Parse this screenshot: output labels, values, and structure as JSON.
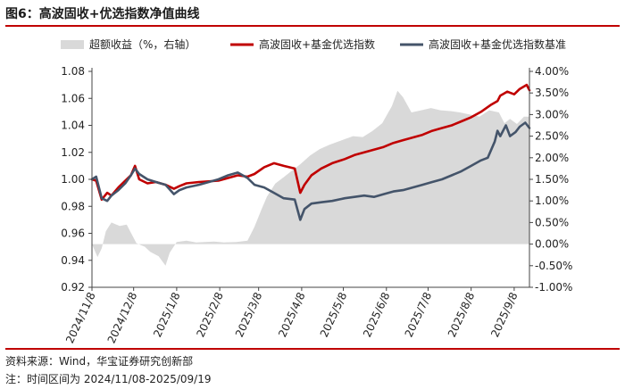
{
  "title": "图6：高波固收+优选指数净值曲线",
  "source": "资料来源：Wind，华宝证券研究创新部",
  "note": "注：时间区间为 2024/11/08-2025/09/19",
  "colors": {
    "area": "#d9d9d9",
    "index": "#c00000",
    "benchmark": "#44546a",
    "rule": "#c00000"
  },
  "chart_data": {
    "type": "line",
    "legend_position": "top",
    "series": [
      {
        "name": "超额收益（%，右轴）",
        "kind": "area",
        "axis": "right",
        "color": "#d9d9d9",
        "points": [
          [
            "2024/11/08",
            0.0
          ],
          [
            "2024/11/12",
            -0.3
          ],
          [
            "2024/11/15",
            -0.1
          ],
          [
            "2024/11/18",
            0.3
          ],
          [
            "2024/11/22",
            0.5
          ],
          [
            "2024/11/28",
            0.42
          ],
          [
            "2024/12/03",
            0.45
          ],
          [
            "2024/12/10",
            0.02
          ],
          [
            "2024/12/16",
            -0.06
          ],
          [
            "2024/12/20",
            -0.18
          ],
          [
            "2024/12/26",
            -0.28
          ],
          [
            "2024/12/31",
            -0.5
          ],
          [
            "2025/01/03",
            -0.2
          ],
          [
            "2025/01/08",
            0.05
          ],
          [
            "2025/01/15",
            0.08
          ],
          [
            "2025/01/22",
            0.04
          ],
          [
            "2025/02/04",
            0.06
          ],
          [
            "2025/02/11",
            0.04
          ],
          [
            "2025/02/20",
            0.05
          ],
          [
            "2025/02/28",
            0.08
          ],
          [
            "2025/03/05",
            0.4
          ],
          [
            "2025/03/10",
            0.8
          ],
          [
            "2025/03/14",
            1.1
          ],
          [
            "2025/03/20",
            1.4
          ],
          [
            "2025/03/26",
            1.55
          ],
          [
            "2025/04/01",
            1.7
          ],
          [
            "2025/04/07",
            1.85
          ],
          [
            "2025/04/14",
            2.05
          ],
          [
            "2025/04/21",
            2.2
          ],
          [
            "2025/04/28",
            2.3
          ],
          [
            "2025/05/08",
            2.42
          ],
          [
            "2025/05/15",
            2.5
          ],
          [
            "2025/05/22",
            2.48
          ],
          [
            "2025/05/29",
            2.62
          ],
          [
            "2025/06/05",
            2.8
          ],
          [
            "2025/06/12",
            3.2
          ],
          [
            "2025/06/16",
            3.55
          ],
          [
            "2025/06/20",
            3.4
          ],
          [
            "2025/06/26",
            3.05
          ],
          [
            "2025/07/03",
            3.1
          ],
          [
            "2025/07/10",
            3.15
          ],
          [
            "2025/07/17",
            3.1
          ],
          [
            "2025/07/24",
            3.08
          ],
          [
            "2025/07/31",
            3.05
          ],
          [
            "2025/08/07",
            3.0
          ],
          [
            "2025/08/14",
            2.95
          ],
          [
            "2025/08/21",
            3.1
          ],
          [
            "2025/08/28",
            3.05
          ],
          [
            "2025/09/01",
            2.8
          ],
          [
            "2025/09/05",
            2.9
          ],
          [
            "2025/09/10",
            2.78
          ],
          [
            "2025/09/15",
            2.95
          ],
          [
            "2025/09/19",
            2.95
          ]
        ]
      },
      {
        "name": "高波固收+基金优选指数",
        "kind": "line",
        "axis": "left",
        "color": "#c00000",
        "points": [
          [
            "2024/11/08",
            1.0
          ],
          [
            "2024/11/11",
            0.999
          ],
          [
            "2024/11/13",
            0.992
          ],
          [
            "2024/11/15",
            0.985
          ],
          [
            "2024/11/19",
            0.99
          ],
          [
            "2024/11/22",
            0.988
          ],
          [
            "2024/11/27",
            0.994
          ],
          [
            "2024/12/02",
            0.999
          ],
          [
            "2024/12/06",
            1.003
          ],
          [
            "2024/12/09",
            1.01
          ],
          [
            "2024/12/12",
            1.0
          ],
          [
            "2024/12/18",
            0.997
          ],
          [
            "2024/12/24",
            0.998
          ],
          [
            "2024/12/31",
            0.996
          ],
          [
            "2025/01/06",
            0.993
          ],
          [
            "2025/01/10",
            0.995
          ],
          [
            "2025/01/15",
            0.997
          ],
          [
            "2025/01/24",
            0.998
          ],
          [
            "2025/02/07",
            0.999
          ],
          [
            "2025/02/14",
            1.001
          ],
          [
            "2025/02/21",
            1.003
          ],
          [
            "2025/02/28",
            1.002
          ],
          [
            "2025/03/05",
            1.004
          ],
          [
            "2025/03/12",
            1.009
          ],
          [
            "2025/03/19",
            1.012
          ],
          [
            "2025/03/26",
            1.01
          ],
          [
            "2025/04/03",
            1.008
          ],
          [
            "2025/04/07",
            0.99
          ],
          [
            "2025/04/10",
            0.996
          ],
          [
            "2025/04/15",
            1.003
          ],
          [
            "2025/04/22",
            1.008
          ],
          [
            "2025/04/30",
            1.012
          ],
          [
            "2025/05/09",
            1.015
          ],
          [
            "2025/05/16",
            1.018
          ],
          [
            "2025/05/23",
            1.02
          ],
          [
            "2025/05/30",
            1.022
          ],
          [
            "2025/06/06",
            1.024
          ],
          [
            "2025/06/13",
            1.027
          ],
          [
            "2025/06/20",
            1.029
          ],
          [
            "2025/06/27",
            1.031
          ],
          [
            "2025/07/04",
            1.033
          ],
          [
            "2025/07/11",
            1.036
          ],
          [
            "2025/07/18",
            1.038
          ],
          [
            "2025/07/25",
            1.04
          ],
          [
            "2025/08/01",
            1.043
          ],
          [
            "2025/08/08",
            1.046
          ],
          [
            "2025/08/15",
            1.05
          ],
          [
            "2025/08/22",
            1.055
          ],
          [
            "2025/08/27",
            1.058
          ],
          [
            "2025/08/29",
            1.062
          ],
          [
            "2025/09/03",
            1.065
          ],
          [
            "2025/09/08",
            1.063
          ],
          [
            "2025/09/12",
            1.067
          ],
          [
            "2025/09/17",
            1.07
          ],
          [
            "2025/09/19",
            1.066
          ]
        ]
      },
      {
        "name": "高波固收+基金优选指数基准",
        "kind": "line",
        "axis": "left",
        "color": "#44546a",
        "points": [
          [
            "2024/11/08",
            1.0
          ],
          [
            "2024/11/11",
            1.002
          ],
          [
            "2024/11/13",
            0.994
          ],
          [
            "2024/11/15",
            0.986
          ],
          [
            "2024/11/19",
            0.984
          ],
          [
            "2024/11/22",
            0.988
          ],
          [
            "2024/11/27",
            0.992
          ],
          [
            "2024/12/02",
            0.997
          ],
          [
            "2024/12/06",
            1.003
          ],
          [
            "2024/12/09",
            1.008
          ],
          [
            "2024/12/12",
            1.004
          ],
          [
            "2024/12/18",
            1.0
          ],
          [
            "2024/12/24",
            0.998
          ],
          [
            "2024/12/31",
            0.996
          ],
          [
            "2025/01/06",
            0.989
          ],
          [
            "2025/01/10",
            0.992
          ],
          [
            "2025/01/15",
            0.994
          ],
          [
            "2025/01/24",
            0.996
          ],
          [
            "2025/02/07",
            1.0
          ],
          [
            "2025/02/14",
            1.003
          ],
          [
            "2025/02/21",
            1.005
          ],
          [
            "2025/02/28",
            1.001
          ],
          [
            "2025/03/05",
            0.996
          ],
          [
            "2025/03/12",
            0.994
          ],
          [
            "2025/03/19",
            0.99
          ],
          [
            "2025/03/26",
            0.986
          ],
          [
            "2025/04/03",
            0.985
          ],
          [
            "2025/04/07",
            0.97
          ],
          [
            "2025/04/10",
            0.978
          ],
          [
            "2025/04/15",
            0.982
          ],
          [
            "2025/04/22",
            0.983
          ],
          [
            "2025/04/30",
            0.984
          ],
          [
            "2025/05/09",
            0.986
          ],
          [
            "2025/05/16",
            0.987
          ],
          [
            "2025/05/23",
            0.988
          ],
          [
            "2025/05/30",
            0.987
          ],
          [
            "2025/06/06",
            0.989
          ],
          [
            "2025/06/13",
            0.991
          ],
          [
            "2025/06/20",
            0.992
          ],
          [
            "2025/06/27",
            0.994
          ],
          [
            "2025/07/04",
            0.996
          ],
          [
            "2025/07/11",
            0.998
          ],
          [
            "2025/07/18",
            1.0
          ],
          [
            "2025/07/25",
            1.003
          ],
          [
            "2025/08/01",
            1.006
          ],
          [
            "2025/08/08",
            1.01
          ],
          [
            "2025/08/15",
            1.014
          ],
          [
            "2025/08/20",
            1.016
          ],
          [
            "2025/08/25",
            1.028
          ],
          [
            "2025/08/27",
            1.036
          ],
          [
            "2025/08/29",
            1.032
          ],
          [
            "2025/09/02",
            1.04
          ],
          [
            "2025/09/05",
            1.032
          ],
          [
            "2025/09/09",
            1.035
          ],
          [
            "2025/09/12",
            1.039
          ],
          [
            "2025/09/16",
            1.042
          ],
          [
            "2025/09/19",
            1.038
          ]
        ]
      }
    ],
    "x_ticks": [
      "2024/11/8",
      "2024/12/8",
      "2025/1/8",
      "2025/2/8",
      "2025/3/8",
      "2025/4/8",
      "2025/5/8",
      "2025/6/8",
      "2025/7/8",
      "2025/8/8",
      "2025/9/8"
    ],
    "y_left": {
      "min": 0.92,
      "max": 1.08,
      "step": 0.02,
      "tick_labels": [
        "0.92",
        "0.94",
        "0.96",
        "0.98",
        "1.00",
        "1.02",
        "1.04",
        "1.06",
        "1.08"
      ]
    },
    "y_right": {
      "min": -1.0,
      "max": 4.0,
      "step": 0.5,
      "tick_labels": [
        "-1.00%",
        "-0.50%",
        "0.00%",
        "0.50%",
        "1.00%",
        "1.50%",
        "2.00%",
        "2.50%",
        "3.00%",
        "3.50%",
        "4.00%"
      ]
    },
    "x_range": [
      "2024/11/08",
      "2025/09/19"
    ],
    "grid": false
  }
}
